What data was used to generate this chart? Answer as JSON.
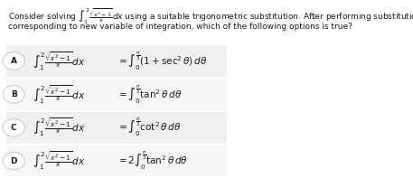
{
  "bg_color": "#f7f7f7",
  "white": "#ffffff",
  "text_color": "#1a1a1a",
  "title_text": "Consider solving $\\int_{1}^{2}\\frac{\\sqrt{x^2-1}}{x}dx$ using a suitable trigonometric substitution. After performing substitution with change in limits",
  "subtitle_text": "corresponding to new variable of integration, which of the following options is true?",
  "options": [
    {
      "label": "A",
      "lhs": "$\\int_{1}^{2}\\frac{\\sqrt{x^2-1}}{x}dx$",
      "eq": "$= \\int_{0}^{\\frac{\\pi}{3}}(1+\\sec^2\\theta)\\,d\\theta$"
    },
    {
      "label": "B",
      "lhs": "$\\int_{1}^{2}\\frac{\\sqrt{x^2-1}}{x}dx$",
      "eq": "$= \\int_{0}^{\\frac{\\pi}{3}}\\tan^2\\theta\\,d\\theta$"
    },
    {
      "label": "C",
      "lhs": "$\\int_{1}^{2}\\frac{\\sqrt{x^2-1}}{x}dx$",
      "eq": "$= \\int_{0}^{\\frac{\\pi}{3}}\\cot^2\\theta\\,d\\theta$"
    },
    {
      "label": "D",
      "lhs": "$\\int_{1}^{2}\\frac{\\sqrt{x^2-1}}{x}dx$",
      "eq": "$= 2\\int_{0}^{\\frac{\\pi}{3}}\\tan^2\\theta\\,d\\theta$"
    }
  ],
  "circle_color": "#cccccc",
  "row_bg_colors": [
    "#f0f0f0",
    "#f7f7f7",
    "#f0f0f0",
    "#f7f7f7"
  ]
}
